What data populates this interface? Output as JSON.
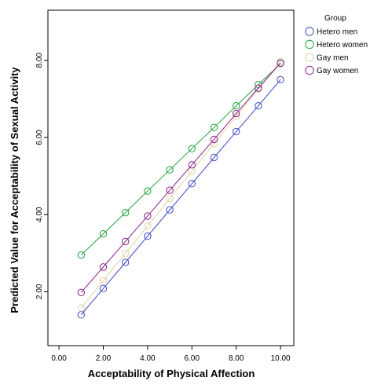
{
  "chart_data": {
    "type": "line",
    "title": "",
    "xlabel": "Acceptability of Physical Affection",
    "ylabel": "Predicted Value for Acceptability of Sexual Activity",
    "xlim": [
      -0.5,
      10.6
    ],
    "ylim": [
      0.6,
      9.3
    ],
    "x_ticks": [
      "0.00",
      "2.00",
      "4.00",
      "6.00",
      "8.00",
      "10.00"
    ],
    "y_ticks": [
      "2.00",
      "4.00",
      "6.00",
      "8.00"
    ],
    "x": [
      1,
      2,
      3,
      4,
      5,
      6,
      7,
      8,
      9,
      10
    ],
    "legend_title": "Group",
    "legend_position": "right",
    "markers": "open-circle",
    "series": [
      {
        "name": "Hetero men",
        "color": "#3b48c8",
        "values": [
          1.4,
          2.08,
          2.76,
          3.44,
          4.12,
          4.8,
          5.48,
          6.15,
          6.82,
          7.5
        ]
      },
      {
        "name": "Hetero women",
        "color": "#1fa33a",
        "values": [
          2.95,
          3.5,
          4.05,
          4.61,
          5.16,
          5.71,
          6.26,
          6.82,
          7.37,
          7.92
        ]
      },
      {
        "name": "Gay men",
        "color": "#ddd4a6",
        "values": [
          1.58,
          2.29,
          2.99,
          3.7,
          4.42,
          5.13,
          5.84,
          6.55,
          7.26,
          7.97
        ]
      },
      {
        "name": "Gay women",
        "color": "#8a1f8c",
        "values": [
          1.98,
          2.64,
          3.3,
          3.96,
          4.63,
          5.29,
          5.95,
          6.62,
          7.28,
          7.93
        ]
      }
    ]
  }
}
